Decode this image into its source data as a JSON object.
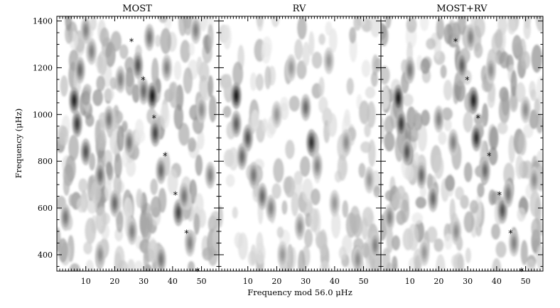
{
  "chart_data": {
    "type": "heatmap",
    "xlabel": "Frequency mod 56.0 μHz",
    "ylabel": "Frequency (μHz)",
    "xlim": [
      0,
      56
    ],
    "ylim": [
      330,
      1420
    ],
    "x_ticks": [
      10,
      20,
      30,
      40,
      50
    ],
    "y_ticks": [
      400,
      600,
      800,
      1000,
      1200,
      1400
    ],
    "colormap": "grayscale (white = low power, black = high power)",
    "panels": [
      {
        "title": "MOST",
        "markers": [
          {
            "x": 25.8,
            "y": 1312
          },
          {
            "x": 29.8,
            "y": 1148
          },
          {
            "x": 33.6,
            "y": 985
          },
          {
            "x": 37.4,
            "y": 823
          },
          {
            "x": 41.0,
            "y": 657
          },
          {
            "x": 44.8,
            "y": 493
          },
          {
            "x": 48.6,
            "y": 330
          }
        ],
        "power_blobs": [
          {
            "x": 6,
            "y": 1060,
            "p": 0.9
          },
          {
            "x": 7,
            "y": 960,
            "p": 0.8
          },
          {
            "x": 8,
            "y": 1190,
            "p": 0.6
          },
          {
            "x": 10,
            "y": 840,
            "p": 0.7
          },
          {
            "x": 12,
            "y": 1270,
            "p": 0.5
          },
          {
            "x": 15,
            "y": 740,
            "p": 0.6
          },
          {
            "x": 18,
            "y": 980,
            "p": 0.55
          },
          {
            "x": 20,
            "y": 620,
            "p": 0.6
          },
          {
            "x": 22,
            "y": 1150,
            "p": 0.5
          },
          {
            "x": 25,
            "y": 880,
            "p": 0.55
          },
          {
            "x": 28,
            "y": 1210,
            "p": 0.7
          },
          {
            "x": 30,
            "y": 1100,
            "p": 0.6
          },
          {
            "x": 33,
            "y": 1080,
            "p": 0.95
          },
          {
            "x": 34,
            "y": 920,
            "p": 0.75
          },
          {
            "x": 32,
            "y": 1330,
            "p": 0.55
          },
          {
            "x": 36,
            "y": 760,
            "p": 0.6
          },
          {
            "x": 38,
            "y": 1200,
            "p": 0.5
          },
          {
            "x": 42,
            "y": 580,
            "p": 0.75
          },
          {
            "x": 44,
            "y": 650,
            "p": 0.55
          },
          {
            "x": 46,
            "y": 450,
            "p": 0.5
          },
          {
            "x": 50,
            "y": 1020,
            "p": 0.45
          },
          {
            "x": 53,
            "y": 740,
            "p": 0.5
          },
          {
            "x": 26,
            "y": 500,
            "p": 0.5
          },
          {
            "x": 15,
            "y": 400,
            "p": 0.45
          },
          {
            "x": 3,
            "y": 560,
            "p": 0.55
          },
          {
            "x": 36,
            "y": 380,
            "p": 0.55
          },
          {
            "x": 48,
            "y": 1360,
            "p": 0.5
          },
          {
            "x": 10,
            "y": 1360,
            "p": 0.5
          }
        ]
      },
      {
        "title": "RV",
        "markers": [],
        "power_blobs": [
          {
            "x": 6,
            "y": 1080,
            "p": 0.95
          },
          {
            "x": 6,
            "y": 960,
            "p": 0.65
          },
          {
            "x": 8,
            "y": 820,
            "p": 0.6
          },
          {
            "x": 10,
            "y": 900,
            "p": 0.7
          },
          {
            "x": 12,
            "y": 740,
            "p": 0.55
          },
          {
            "x": 15,
            "y": 650,
            "p": 0.6
          },
          {
            "x": 18,
            "y": 600,
            "p": 0.5
          },
          {
            "x": 20,
            "y": 1000,
            "p": 0.4
          },
          {
            "x": 25,
            "y": 1200,
            "p": 0.4
          },
          {
            "x": 30,
            "y": 1030,
            "p": 0.6
          },
          {
            "x": 32,
            "y": 880,
            "p": 0.85
          },
          {
            "x": 34,
            "y": 780,
            "p": 0.5
          },
          {
            "x": 28,
            "y": 520,
            "p": 0.45
          },
          {
            "x": 40,
            "y": 620,
            "p": 0.4
          },
          {
            "x": 44,
            "y": 880,
            "p": 0.45
          },
          {
            "x": 48,
            "y": 380,
            "p": 0.45
          },
          {
            "x": 54,
            "y": 440,
            "p": 0.5
          },
          {
            "x": 52,
            "y": 720,
            "p": 0.4
          },
          {
            "x": 22,
            "y": 400,
            "p": 0.4
          },
          {
            "x": 38,
            "y": 1230,
            "p": 0.4
          }
        ]
      },
      {
        "title": "MOST+RV",
        "markers": [
          {
            "x": 25.8,
            "y": 1312
          },
          {
            "x": 29.8,
            "y": 1148
          },
          {
            "x": 33.6,
            "y": 985
          },
          {
            "x": 37.4,
            "y": 823
          },
          {
            "x": 41.0,
            "y": 657
          },
          {
            "x": 44.8,
            "y": 493
          },
          {
            "x": 48.6,
            "y": 330
          }
        ],
        "power_blobs": [
          {
            "x": 6,
            "y": 1070,
            "p": 0.95
          },
          {
            "x": 7,
            "y": 960,
            "p": 0.8
          },
          {
            "x": 9,
            "y": 840,
            "p": 0.7
          },
          {
            "x": 10,
            "y": 1190,
            "p": 0.55
          },
          {
            "x": 14,
            "y": 740,
            "p": 0.6
          },
          {
            "x": 18,
            "y": 640,
            "p": 0.6
          },
          {
            "x": 20,
            "y": 980,
            "p": 0.5
          },
          {
            "x": 25,
            "y": 880,
            "p": 0.5
          },
          {
            "x": 28,
            "y": 1210,
            "p": 0.65
          },
          {
            "x": 32,
            "y": 1060,
            "p": 0.9
          },
          {
            "x": 33,
            "y": 900,
            "p": 0.85
          },
          {
            "x": 31,
            "y": 1330,
            "p": 0.5
          },
          {
            "x": 36,
            "y": 760,
            "p": 0.6
          },
          {
            "x": 42,
            "y": 590,
            "p": 0.7
          },
          {
            "x": 44,
            "y": 660,
            "p": 0.55
          },
          {
            "x": 46,
            "y": 450,
            "p": 0.5
          },
          {
            "x": 50,
            "y": 1020,
            "p": 0.45
          },
          {
            "x": 53,
            "y": 720,
            "p": 0.45
          },
          {
            "x": 26,
            "y": 500,
            "p": 0.45
          },
          {
            "x": 15,
            "y": 410,
            "p": 0.4
          },
          {
            "x": 3,
            "y": 560,
            "p": 0.5
          },
          {
            "x": 38,
            "y": 1190,
            "p": 0.45
          }
        ]
      }
    ]
  }
}
